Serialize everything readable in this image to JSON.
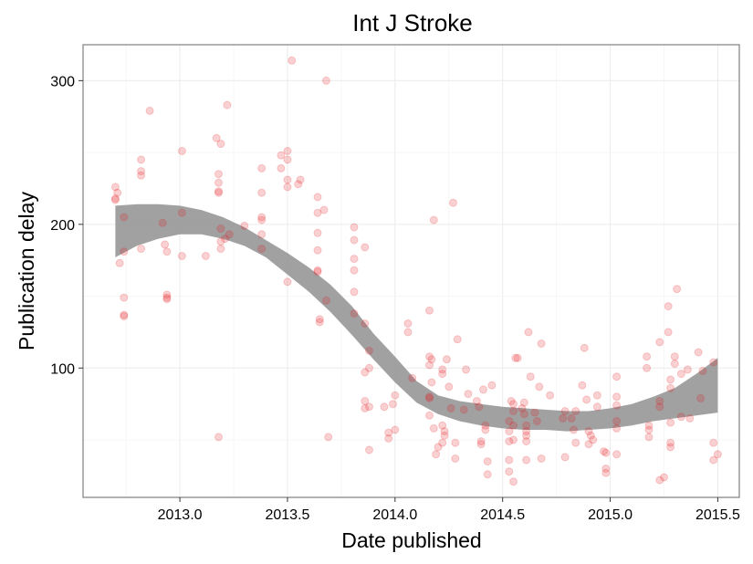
{
  "chart_data": {
    "type": "scatter",
    "title": "Int J Stroke",
    "xlabel": "Date published",
    "ylabel": "Publication delay",
    "xlim": [
      2012.55,
      2015.6
    ],
    "ylim": [
      10,
      325
    ],
    "xticks": [
      2013.0,
      2013.5,
      2014.0,
      2014.5,
      2015.0,
      2015.5
    ],
    "xtick_labels": [
      "2013.0",
      "2013.5",
      "2014.0",
      "2014.5",
      "2015.0",
      "2015.5"
    ],
    "yticks": [
      100,
      200,
      300
    ],
    "ytick_labels": [
      "100",
      "200",
      "300"
    ],
    "grid": true,
    "point_color": "#e41a1c",
    "point_opacity": 0.2,
    "band_color": "#999999",
    "points": [
      [
        2012.7,
        226
      ],
      [
        2012.7,
        218
      ],
      [
        2012.7,
        217
      ],
      [
        2012.71,
        222
      ],
      [
        2012.72,
        173
      ],
      [
        2012.74,
        205
      ],
      [
        2012.74,
        181
      ],
      [
        2012.74,
        149
      ],
      [
        2012.74,
        137
      ],
      [
        2012.74,
        136
      ],
      [
        2012.82,
        245
      ],
      [
        2012.82,
        237
      ],
      [
        2012.82,
        234
      ],
      [
        2012.82,
        183
      ],
      [
        2012.86,
        279
      ],
      [
        2012.92,
        201
      ],
      [
        2012.93,
        186
      ],
      [
        2012.94,
        181
      ],
      [
        2012.94,
        151
      ],
      [
        2012.94,
        149
      ],
      [
        2012.94,
        148
      ],
      [
        2013.01,
        251
      ],
      [
        2013.01,
        208
      ],
      [
        2013.01,
        178
      ],
      [
        2013.12,
        178
      ],
      [
        2013.17,
        260
      ],
      [
        2013.19,
        256
      ],
      [
        2013.18,
        235
      ],
      [
        2013.18,
        229
      ],
      [
        2013.18,
        223
      ],
      [
        2013.18,
        222
      ],
      [
        2013.18,
        52
      ],
      [
        2013.19,
        197
      ],
      [
        2013.19,
        188
      ],
      [
        2013.19,
        183
      ],
      [
        2013.21,
        190
      ],
      [
        2013.22,
        283
      ],
      [
        2013.23,
        193
      ],
      [
        2013.3,
        199
      ],
      [
        2013.38,
        239
      ],
      [
        2013.38,
        222
      ],
      [
        2013.38,
        205
      ],
      [
        2013.38,
        203
      ],
      [
        2013.38,
        193
      ],
      [
        2013.38,
        183
      ],
      [
        2013.47,
        248
      ],
      [
        2013.47,
        239
      ],
      [
        2013.5,
        251
      ],
      [
        2013.5,
        245
      ],
      [
        2013.5,
        231
      ],
      [
        2013.5,
        226
      ],
      [
        2013.5,
        160
      ],
      [
        2013.52,
        314
      ],
      [
        2013.55,
        228
      ],
      [
        2013.56,
        231
      ],
      [
        2013.64,
        219
      ],
      [
        2013.64,
        208
      ],
      [
        2013.64,
        194
      ],
      [
        2013.64,
        182
      ],
      [
        2013.64,
        168
      ],
      [
        2013.64,
        167
      ],
      [
        2013.65,
        134
      ],
      [
        2013.65,
        132
      ],
      [
        2013.67,
        210
      ],
      [
        2013.68,
        300
      ],
      [
        2013.68,
        147
      ],
      [
        2013.69,
        52
      ],
      [
        2013.81,
        198
      ],
      [
        2013.81,
        189
      ],
      [
        2013.81,
        176
      ],
      [
        2013.81,
        168
      ],
      [
        2013.81,
        153
      ],
      [
        2013.81,
        138
      ],
      [
        2013.86,
        184
      ],
      [
        2013.86,
        131
      ],
      [
        2013.86,
        97
      ],
      [
        2013.86,
        77
      ],
      [
        2013.86,
        72
      ],
      [
        2013.88,
        112
      ],
      [
        2013.88,
        100
      ],
      [
        2013.88,
        73
      ],
      [
        2013.88,
        43
      ],
      [
        2013.95,
        73
      ],
      [
        2013.97,
        51
      ],
      [
        2013.97,
        55
      ],
      [
        2013.99,
        75
      ],
      [
        2014.0,
        81
      ],
      [
        2014.0,
        57
      ],
      [
        2014.06,
        131
      ],
      [
        2014.06,
        125
      ],
      [
        2014.08,
        93
      ],
      [
        2014.16,
        140
      ],
      [
        2014.16,
        108
      ],
      [
        2014.16,
        102
      ],
      [
        2014.16,
        80
      ],
      [
        2014.16,
        79
      ],
      [
        2014.16,
        67
      ],
      [
        2014.17,
        106
      ],
      [
        2014.17,
        90
      ],
      [
        2014.18,
        203
      ],
      [
        2014.18,
        58
      ],
      [
        2014.19,
        40
      ],
      [
        2014.2,
        45
      ],
      [
        2014.22,
        99
      ],
      [
        2014.22,
        96
      ],
      [
        2014.22,
        60
      ],
      [
        2014.22,
        48
      ],
      [
        2014.23,
        56
      ],
      [
        2014.23,
        53
      ],
      [
        2014.24,
        106
      ],
      [
        2014.25,
        87
      ],
      [
        2014.26,
        72
      ],
      [
        2014.27,
        215
      ],
      [
        2014.28,
        48
      ],
      [
        2014.29,
        120
      ],
      [
        2014.28,
        37
      ],
      [
        2014.32,
        71
      ],
      [
        2014.33,
        99
      ],
      [
        2014.34,
        82
      ],
      [
        2014.38,
        77
      ],
      [
        2014.39,
        73
      ],
      [
        2014.4,
        49
      ],
      [
        2014.4,
        47
      ],
      [
        2014.41,
        85
      ],
      [
        2014.42,
        60
      ],
      [
        2014.42,
        57
      ],
      [
        2014.43,
        26
      ],
      [
        2014.43,
        35
      ],
      [
        2014.45,
        88
      ],
      [
        2014.53,
        63
      ],
      [
        2014.53,
        56
      ],
      [
        2014.53,
        49
      ],
      [
        2014.53,
        36
      ],
      [
        2014.53,
        28
      ],
      [
        2014.54,
        77
      ],
      [
        2014.55,
        75
      ],
      [
        2014.55,
        70
      ],
      [
        2014.55,
        60
      ],
      [
        2014.55,
        50
      ],
      [
        2014.55,
        21
      ],
      [
        2014.56,
        107
      ],
      [
        2014.57,
        107
      ],
      [
        2014.59,
        72
      ],
      [
        2014.6,
        76
      ],
      [
        2014.6,
        68
      ],
      [
        2014.61,
        60
      ],
      [
        2014.61,
        56
      ],
      [
        2014.61,
        53
      ],
      [
        2014.61,
        49
      ],
      [
        2014.61,
        36
      ],
      [
        2014.62,
        125
      ],
      [
        2014.63,
        94
      ],
      [
        2014.65,
        69
      ],
      [
        2014.66,
        63
      ],
      [
        2014.67,
        87
      ],
      [
        2014.68,
        117
      ],
      [
        2014.68,
        37
      ],
      [
        2014.72,
        81
      ],
      [
        2014.78,
        65
      ],
      [
        2014.79,
        70
      ],
      [
        2014.79,
        38
      ],
      [
        2014.82,
        65
      ],
      [
        2014.83,
        57
      ],
      [
        2014.84,
        70
      ],
      [
        2014.84,
        48
      ],
      [
        2014.87,
        88
      ],
      [
        2014.88,
        114
      ],
      [
        2014.89,
        78
      ],
      [
        2014.9,
        56
      ],
      [
        2014.9,
        47
      ],
      [
        2014.91,
        53
      ],
      [
        2014.92,
        50
      ],
      [
        2014.94,
        81
      ],
      [
        2014.94,
        73
      ],
      [
        2014.97,
        42
      ],
      [
        2014.98,
        30
      ],
      [
        2014.98,
        27
      ],
      [
        2014.98,
        41
      ],
      [
        2015.03,
        94
      ],
      [
        2015.03,
        80
      ],
      [
        2015.03,
        74
      ],
      [
        2015.03,
        63
      ],
      [
        2015.03,
        58
      ],
      [
        2015.03,
        40
      ],
      [
        2015.17,
        108
      ],
      [
        2015.17,
        100
      ],
      [
        2015.18,
        57
      ],
      [
        2015.18,
        52
      ],
      [
        2015.18,
        60
      ],
      [
        2015.23,
        77
      ],
      [
        2015.23,
        73
      ],
      [
        2015.23,
        118
      ],
      [
        2015.23,
        22
      ],
      [
        2015.25,
        24
      ],
      [
        2015.27,
        143
      ],
      [
        2015.27,
        125
      ],
      [
        2015.28,
        92
      ],
      [
        2015.28,
        86
      ],
      [
        2015.28,
        62
      ],
      [
        2015.28,
        48
      ],
      [
        2015.28,
        45
      ],
      [
        2015.3,
        108
      ],
      [
        2015.3,
        103
      ],
      [
        2015.31,
        155
      ],
      [
        2015.33,
        96
      ],
      [
        2015.33,
        66
      ],
      [
        2015.36,
        99
      ],
      [
        2015.37,
        65
      ],
      [
        2015.41,
        111
      ],
      [
        2015.42,
        79
      ],
      [
        2015.43,
        98
      ],
      [
        2015.48,
        104
      ],
      [
        2015.48,
        48
      ],
      [
        2015.48,
        36
      ],
      [
        2015.5,
        40
      ]
    ],
    "smooth_band": {
      "x": [
        2012.7,
        2012.8,
        2012.9,
        2013.0,
        2013.1,
        2013.2,
        2013.3,
        2013.4,
        2013.5,
        2013.6,
        2013.7,
        2013.8,
        2013.9,
        2014.0,
        2014.1,
        2014.2,
        2014.3,
        2014.4,
        2014.5,
        2014.6,
        2014.7,
        2014.8,
        2014.9,
        2015.0,
        2015.1,
        2015.2,
        2015.3,
        2015.4,
        2015.5
      ],
      "upper": [
        213,
        214,
        214,
        213,
        210,
        205,
        198,
        189,
        180,
        170,
        158,
        143,
        124,
        108,
        91,
        81,
        77,
        75,
        73,
        72,
        71,
        70,
        70,
        72,
        75,
        80,
        86,
        96,
        107
      ],
      "lower": [
        177,
        185,
        190,
        193,
        193,
        190,
        185,
        177,
        165,
        153,
        139,
        123,
        106,
        90,
        76,
        68,
        63,
        60,
        58,
        57,
        57,
        56,
        57,
        58,
        60,
        63,
        65,
        67,
        69
      ]
    }
  }
}
